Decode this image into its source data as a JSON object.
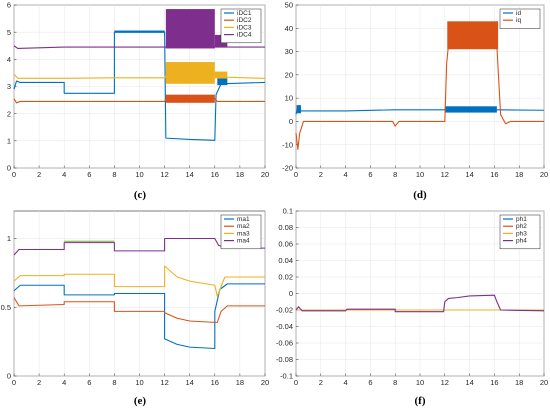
{
  "chart_data": [
    {
      "type": "line",
      "caption": "(c)",
      "xlim": [
        0,
        20
      ],
      "ylim": [
        0,
        6
      ],
      "xticks": [
        "0",
        "2",
        "4",
        "6",
        "8",
        "10",
        "12",
        "14",
        "16",
        "18",
        "20"
      ],
      "yticks": [
        "0",
        "1",
        "2",
        "3",
        "4",
        "5",
        "6"
      ],
      "legend_position": "top-right",
      "series": [
        {
          "name": "iDC1",
          "color": "#0072BD",
          "points": [
            [
              0,
              2.9
            ],
            [
              0.2,
              3.2
            ],
            [
              0.5,
              3.15
            ],
            [
              4,
              3.15
            ],
            [
              4,
              2.75
            ],
            [
              8,
              2.75
            ],
            [
              8,
              5.0
            ],
            [
              12,
              5.0
            ],
            [
              12.1,
              1.1
            ],
            [
              14,
              1.05
            ],
            [
              16,
              1.02
            ],
            [
              16.1,
              2.7
            ],
            [
              16.5,
              3.1
            ],
            [
              20,
              3.15
            ]
          ],
          "bands": [
            [
              8,
              12,
              4.98,
              5.06
            ],
            [
              16.2,
              17,
              3.05,
              3.3
            ]
          ]
        },
        {
          "name": "iDC2",
          "color": "#D95319",
          "points": [
            [
              0,
              2.55
            ],
            [
              0.2,
              2.4
            ],
            [
              0.5,
              2.45
            ],
            [
              4,
              2.45
            ],
            [
              8,
              2.45
            ],
            [
              12,
              2.45
            ],
            [
              12.1,
              2.55
            ],
            [
              16,
              2.55
            ],
            [
              16.2,
              2.45
            ],
            [
              20,
              2.45
            ]
          ],
          "bands": [
            [
              12.1,
              16,
              2.4,
              2.7
            ]
          ]
        },
        {
          "name": "iDC3",
          "color": "#EDB120",
          "points": [
            [
              0,
              3.45
            ],
            [
              0.3,
              3.3
            ],
            [
              4,
              3.3
            ],
            [
              8,
              3.32
            ],
            [
              12,
              3.32
            ],
            [
              12.1,
              3.4
            ],
            [
              16,
              3.45
            ],
            [
              16.3,
              3.35
            ],
            [
              20,
              3.3
            ]
          ],
          "bands": [
            [
              12.1,
              16,
              3.1,
              3.9
            ],
            [
              16,
              17,
              3.3,
              3.55
            ]
          ]
        },
        {
          "name": "iDC4",
          "color": "#7E2F8E",
          "points": [
            [
              0,
              4.5
            ],
            [
              0.3,
              4.4
            ],
            [
              4,
              4.45
            ],
            [
              8,
              4.45
            ],
            [
              12,
              4.45
            ],
            [
              16,
              4.45
            ],
            [
              16.3,
              4.45
            ],
            [
              20,
              4.45
            ]
          ],
          "bands": [
            [
              12.1,
              16,
              4.4,
              5.85
            ],
            [
              16,
              17,
              4.45,
              4.9
            ]
          ]
        }
      ]
    },
    {
      "type": "line",
      "caption": "(d)",
      "xlim": [
        0,
        20
      ],
      "ylim": [
        -20,
        50
      ],
      "xticks": [
        "0",
        "2",
        "4",
        "6",
        "8",
        "10",
        "12",
        "14",
        "16",
        "18",
        "20"
      ],
      "yticks": [
        "-20",
        "-10",
        "0",
        "10",
        "20",
        "30",
        "40",
        "50"
      ],
      "legend_position": "top-right",
      "series": [
        {
          "name": "id",
          "color": "#0072BD",
          "points": [
            [
              0,
              3
            ],
            [
              0.15,
              6.5
            ],
            [
              0.4,
              4.5
            ],
            [
              4,
              4.5
            ],
            [
              8,
              5
            ],
            [
              12,
              5
            ],
            [
              16,
              5
            ],
            [
              16.3,
              5
            ],
            [
              20,
              4.8
            ]
          ],
          "bands": [
            [
              0.05,
              0.4,
              3.5,
              7
            ],
            [
              12,
              16.2,
              3.8,
              6.5
            ]
          ]
        },
        {
          "name": "iq",
          "color": "#D95319",
          "points": [
            [
              0,
              -5
            ],
            [
              0.15,
              -12
            ],
            [
              0.3,
              -5
            ],
            [
              0.6,
              0
            ],
            [
              4,
              0
            ],
            [
              7.8,
              0
            ],
            [
              8,
              -2
            ],
            [
              8.3,
              0
            ],
            [
              12,
              0
            ],
            [
              12.15,
              25
            ],
            [
              12.3,
              33
            ],
            [
              13,
              34
            ],
            [
              13.5,
              38
            ],
            [
              14.5,
              41
            ],
            [
              16,
              42
            ],
            [
              16.1,
              42
            ],
            [
              16.5,
              3
            ],
            [
              16.9,
              -1
            ],
            [
              17.3,
              0
            ],
            [
              20,
              0
            ]
          ],
          "bands": [
            [
              12.2,
              16.3,
              31,
              43
            ]
          ]
        }
      ]
    },
    {
      "type": "line",
      "caption": "(e)",
      "xlim": [
        0,
        20
      ],
      "ylim": [
        0,
        1.2
      ],
      "xticks": [
        "0",
        "2",
        "4",
        "6",
        "8",
        "10",
        "12",
        "14",
        "16",
        "18",
        "20"
      ],
      "yticks": [
        "0",
        "0.5",
        "1"
      ],
      "legend_position": "top-right",
      "series": [
        {
          "name": "ma1",
          "color": "#0072BD",
          "points": [
            [
              0,
              0.62
            ],
            [
              0.5,
              0.66
            ],
            [
              4,
              0.66
            ],
            [
              4,
              0.59
            ],
            [
              8,
              0.59
            ],
            [
              8,
              0.6
            ],
            [
              12,
              0.6
            ],
            [
              12,
              0.27
            ],
            [
              13,
              0.23
            ],
            [
              14,
              0.21
            ],
            [
              16,
              0.2
            ],
            [
              16,
              0.47
            ],
            [
              16.4,
              0.63
            ],
            [
              17,
              0.67
            ],
            [
              20,
              0.67
            ]
          ]
        },
        {
          "name": "ma2",
          "color": "#D95319",
          "points": [
            [
              0,
              0.57
            ],
            [
              0.4,
              0.51
            ],
            [
              4,
              0.52
            ],
            [
              4,
              0.54
            ],
            [
              8,
              0.54
            ],
            [
              8,
              0.47
            ],
            [
              12,
              0.47
            ],
            [
              12,
              0.46
            ],
            [
              13,
              0.42
            ],
            [
              14,
              0.4
            ],
            [
              16,
              0.39
            ],
            [
              16.2,
              0.39
            ],
            [
              16.5,
              0.47
            ],
            [
              17,
              0.51
            ],
            [
              20,
              0.51
            ]
          ]
        },
        {
          "name": "ma3",
          "color": "#EDB120",
          "points": [
            [
              0,
              0.69
            ],
            [
              0.5,
              0.73
            ],
            [
              4,
              0.73
            ],
            [
              4,
              0.74
            ],
            [
              8,
              0.74
            ],
            [
              8,
              0.65
            ],
            [
              12,
              0.65
            ],
            [
              12,
              0.8
            ],
            [
              13,
              0.72
            ],
            [
              14,
              0.69
            ],
            [
              16,
              0.66
            ],
            [
              16.2,
              0.58
            ],
            [
              16.8,
              0.72
            ],
            [
              20,
              0.72
            ]
          ]
        },
        {
          "name": "ma4",
          "color": "#7E2F8E",
          "points": [
            [
              0,
              0.88
            ],
            [
              0.4,
              0.92
            ],
            [
              4,
              0.92
            ],
            [
              4,
              0.97
            ],
            [
              8,
              0.97
            ],
            [
              8,
              0.91
            ],
            [
              12,
              0.91
            ],
            [
              12,
              1.0
            ],
            [
              16,
              1.0
            ],
            [
              16.3,
              0.95
            ],
            [
              17,
              0.93
            ],
            [
              20,
              0.93
            ]
          ]
        },
        {
          "name": "",
          "color": "#77AC30",
          "points": [
            [
              4,
              0.98
            ],
            [
              8,
              0.98
            ]
          ]
        }
      ]
    },
    {
      "type": "line",
      "caption": "(f)",
      "xlim": [
        0,
        20
      ],
      "ylim": [
        -0.1,
        0.1
      ],
      "xticks": [
        "0",
        "2",
        "4",
        "6",
        "8",
        "10",
        "12",
        "14",
        "16",
        "18",
        "20"
      ],
      "yticks": [
        "-0.1",
        "-0.08",
        "-0.06",
        "-0.04",
        "-0.02",
        "0",
        "0.02",
        "0.04",
        "0.06",
        "0.08",
        "0.1"
      ],
      "legend_position": "top-right",
      "series": [
        {
          "name": "ph1",
          "color": "#0072BD",
          "points": [
            [
              0,
              -0.02
            ],
            [
              20,
              -0.02
            ]
          ]
        },
        {
          "name": "ph2",
          "color": "#D95319",
          "points": [
            [
              0,
              -0.02
            ],
            [
              20,
              -0.02
            ]
          ]
        },
        {
          "name": "ph3",
          "color": "#EDB120",
          "points": [
            [
              0,
              -0.02
            ],
            [
              20,
              -0.02
            ]
          ]
        },
        {
          "name": "ph4",
          "color": "#7E2F8E",
          "points": [
            [
              0,
              -0.02
            ],
            [
              0.2,
              -0.016
            ],
            [
              0.5,
              -0.021
            ],
            [
              4,
              -0.021
            ],
            [
              4.1,
              -0.019
            ],
            [
              8,
              -0.019
            ],
            [
              8,
              -0.022
            ],
            [
              11.9,
              -0.022
            ],
            [
              12,
              -0.01
            ],
            [
              12.3,
              -0.006
            ],
            [
              13,
              -0.005
            ],
            [
              14,
              -0.003
            ],
            [
              16,
              -0.002
            ],
            [
              16.2,
              -0.01
            ],
            [
              16.5,
              -0.02
            ],
            [
              20,
              -0.021
            ]
          ]
        }
      ]
    }
  ]
}
